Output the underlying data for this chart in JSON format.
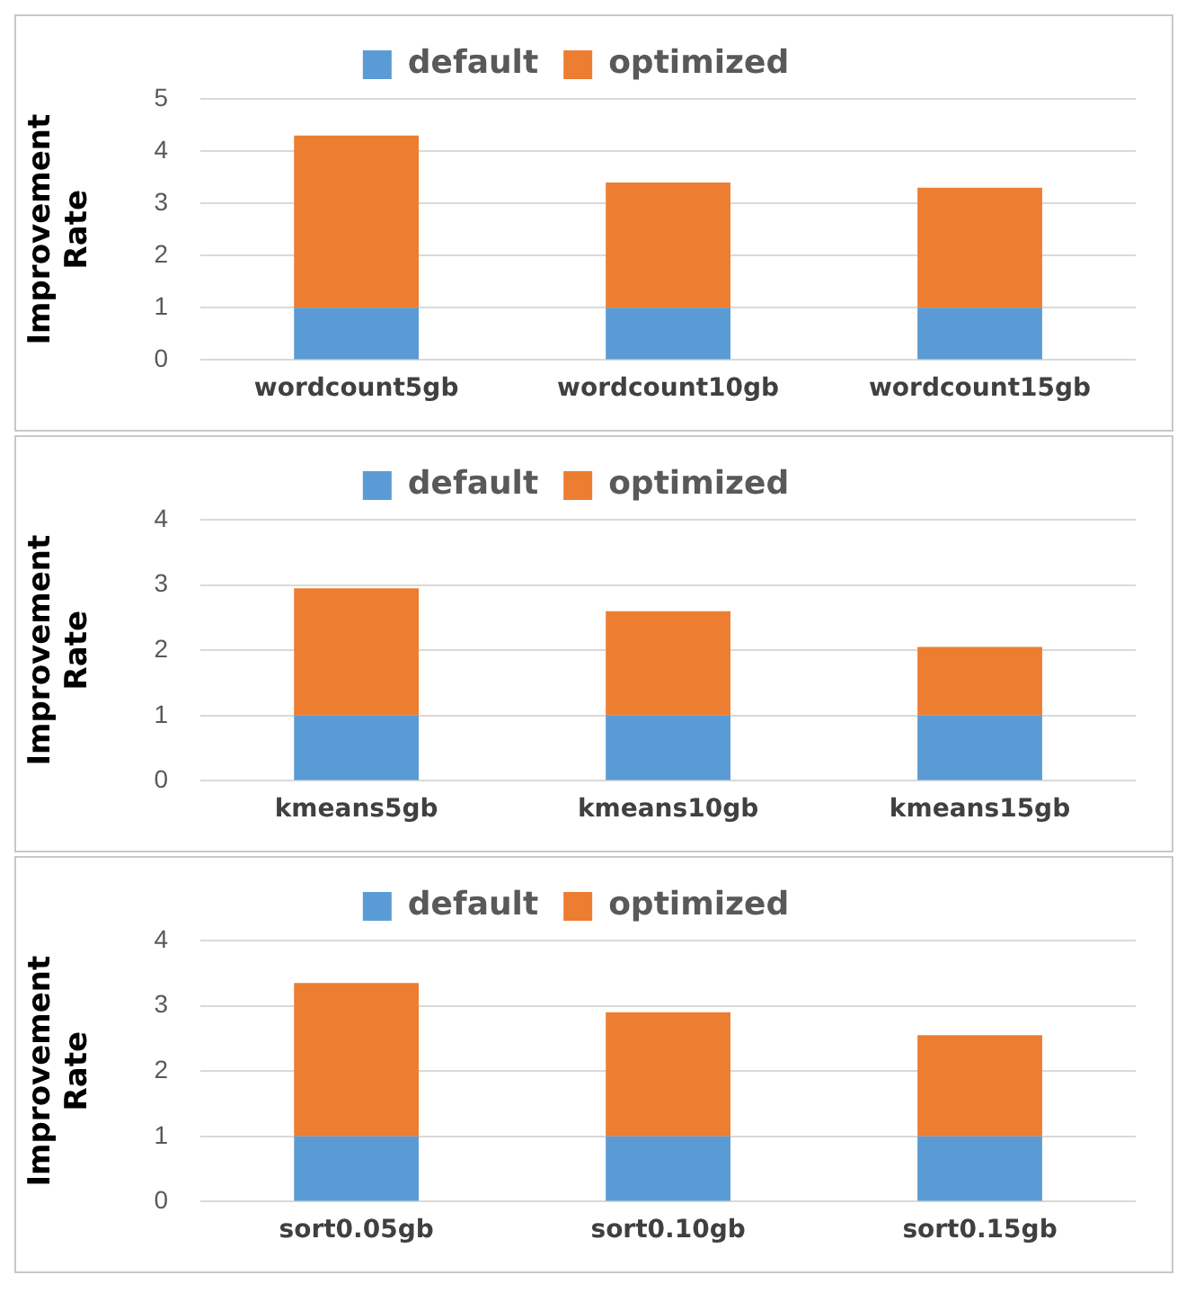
{
  "chart_data": [
    {
      "type": "bar",
      "stacked": true,
      "ylabel": "Improvement\nRate",
      "categories": [
        "wordcount5gb",
        "wordcount10gb",
        "wordcount15gb"
      ],
      "series": [
        {
          "name": "default",
          "color": "#5b9bd5",
          "values": [
            1,
            1,
            1
          ]
        },
        {
          "name": "optimized",
          "color": "#ed7d31",
          "values": [
            3.3,
            2.4,
            2.3
          ]
        }
      ],
      "ylim": [
        0,
        5
      ],
      "yticks": [
        0,
        1,
        2,
        3,
        4,
        5
      ],
      "grid": "y",
      "legend": "top"
    },
    {
      "type": "bar",
      "stacked": true,
      "ylabel": "Improvement\nRate",
      "categories": [
        "kmeans5gb",
        "kmeans10gb",
        "kmeans15gb"
      ],
      "series": [
        {
          "name": "default",
          "color": "#5b9bd5",
          "values": [
            1,
            1,
            1
          ]
        },
        {
          "name": "optimized",
          "color": "#ed7d31",
          "values": [
            1.95,
            1.6,
            1.05
          ]
        }
      ],
      "ylim": [
        0,
        4
      ],
      "yticks": [
        0,
        1,
        2,
        3,
        4
      ],
      "grid": "y",
      "legend": "top"
    },
    {
      "type": "bar",
      "stacked": true,
      "ylabel": "Improvement\nRate",
      "categories": [
        "sort0.05gb",
        "sort0.10gb",
        "sort0.15gb"
      ],
      "series": [
        {
          "name": "default",
          "color": "#5b9bd5",
          "values": [
            1,
            1,
            1
          ]
        },
        {
          "name": "optimized",
          "color": "#ed7d31",
          "values": [
            2.35,
            1.9,
            1.55
          ]
        }
      ],
      "ylim": [
        0,
        4
      ],
      "yticks": [
        0,
        1,
        2,
        3,
        4
      ],
      "grid": "y",
      "legend": "top"
    }
  ]
}
